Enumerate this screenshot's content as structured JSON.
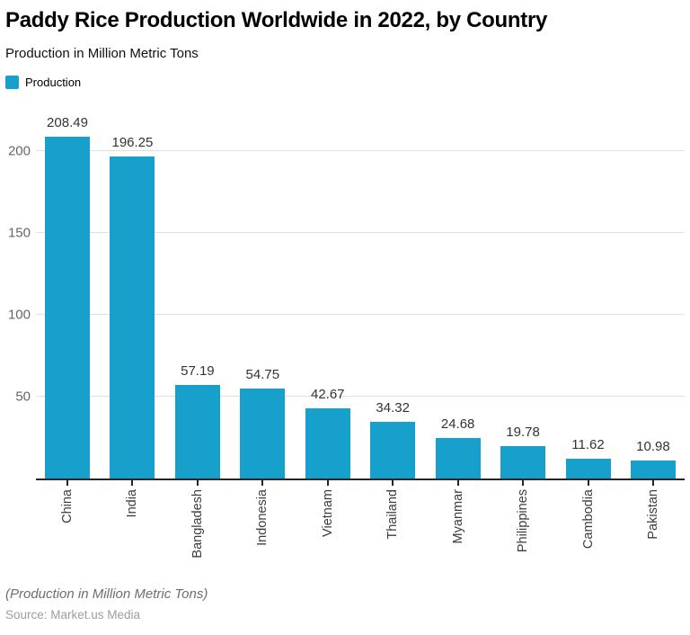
{
  "header": {
    "title": "Paddy Rice Production Worldwide in 2022, by Country",
    "subtitle": "Production in Million Metric Tons"
  },
  "legend": {
    "label": "Production",
    "color": "#18A0CC"
  },
  "chart_data": {
    "type": "bar",
    "title": "Paddy Rice Production Worldwide in 2022, by Country",
    "categories": [
      "China",
      "India",
      "Bangladesh",
      "Indonesia",
      "Vietnam",
      "Thailand",
      "Myanmar",
      "Philippines",
      "Cambodia",
      "Pakistan"
    ],
    "values": [
      208.49,
      196.25,
      57.19,
      54.75,
      42.67,
      34.32,
      24.68,
      19.78,
      11.62,
      10.98
    ],
    "xlabel": "",
    "ylabel": "Production in Million Metric Tons",
    "ylim": [
      0,
      222.5
    ],
    "yticks": [
      50,
      100,
      150,
      200
    ],
    "bar_color": "#18A0CC",
    "grid": "horizontal",
    "gridline_color": "#e0e0e0",
    "axis_line_color": "#262626",
    "legend_position": "top-left",
    "legend_entries": [
      "Production"
    ]
  },
  "footer": {
    "note": "(Production in Million Metric Tons)",
    "source": "Source: Market.us Media"
  }
}
